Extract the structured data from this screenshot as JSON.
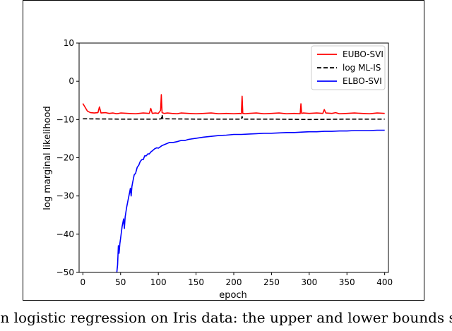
{
  "chart_data": {
    "type": "line",
    "title": "",
    "xlabel": "epoch",
    "ylabel": "log marginal likelihood",
    "xlim": [
      -5,
      405
    ],
    "ylim": [
      -50,
      10
    ],
    "xticks": [
      0,
      50,
      100,
      150,
      200,
      250,
      300,
      350,
      400
    ],
    "yticks": [
      10,
      0,
      -10,
      -20,
      -30,
      -40,
      -50
    ],
    "xtick_labels": [
      "0",
      "50",
      "100",
      "150",
      "200",
      "250",
      "300",
      "350",
      "400"
    ],
    "ytick_labels": [
      "10",
      "0",
      "−10",
      "−20",
      "−30",
      "−40",
      "−50"
    ],
    "grid": false,
    "legend_position": "top-right",
    "series": [
      {
        "name": "EUBO-SVI",
        "color": "#ff0000",
        "style": "solid",
        "x": [
          0,
          3,
          6,
          10,
          15,
          20,
          22,
          24,
          30,
          35,
          40,
          45,
          50,
          60,
          70,
          80,
          88,
          90,
          92,
          96,
          100,
          103,
          104,
          105,
          108,
          112,
          118,
          125,
          130,
          140,
          150,
          160,
          170,
          180,
          190,
          200,
          208,
          210,
          211,
          212,
          215,
          220,
          230,
          240,
          250,
          260,
          270,
          280,
          288,
          289,
          290,
          292,
          300,
          310,
          318,
          320,
          322,
          330,
          335,
          340,
          350,
          360,
          370,
          380,
          390,
          400
        ],
        "y": [
          -5.8,
          -6.8,
          -7.8,
          -8.2,
          -8.3,
          -8.2,
          -6.7,
          -8.3,
          -8.2,
          -8.4,
          -8.3,
          -8.5,
          -8.3,
          -8.4,
          -8.5,
          -8.3,
          -8.4,
          -7.1,
          -8.4,
          -8.3,
          -8.4,
          -7.6,
          -3.5,
          -8.2,
          -8.4,
          -8.3,
          -8.4,
          -8.5,
          -8.3,
          -8.4,
          -8.5,
          -8.4,
          -8.3,
          -8.5,
          -8.4,
          -8.5,
          -8.4,
          -8.5,
          -3.9,
          -8.4,
          -8.5,
          -8.4,
          -8.3,
          -8.5,
          -8.4,
          -8.3,
          -8.5,
          -8.4,
          -8.5,
          -5.9,
          -8.4,
          -8.3,
          -8.4,
          -8.3,
          -8.4,
          -7.4,
          -8.3,
          -8.4,
          -8.2,
          -8.5,
          -8.4,
          -8.3,
          -8.4,
          -8.5,
          -8.3,
          -8.4
        ]
      },
      {
        "name": "log ML-IS",
        "color": "#000000",
        "style": "dashed",
        "x": [
          0,
          50,
          100,
          104,
          105,
          106,
          150,
          200,
          210,
          211,
          212,
          250,
          300,
          350,
          400
        ],
        "y": [
          -9.8,
          -9.9,
          -9.9,
          -9.8,
          -8.8,
          -9.8,
          -9.9,
          -9.9,
          -9.9,
          -9.2,
          -9.9,
          -9.9,
          -10.0,
          -9.9,
          -9.9
        ],
        "note": ""
      },
      {
        "name": "ELBO-SVI",
        "color": "#0000ff",
        "style": "solid",
        "x": [
          45,
          46,
          47,
          48,
          49,
          50,
          52,
          54,
          55,
          56,
          58,
          60,
          62,
          63,
          64,
          65,
          66,
          68,
          70,
          72,
          74,
          76,
          78,
          80,
          82,
          84,
          86,
          88,
          90,
          92,
          95,
          98,
          100,
          105,
          110,
          115,
          120,
          125,
          130,
          135,
          140,
          150,
          160,
          170,
          180,
          190,
          200,
          210,
          220,
          230,
          240,
          250,
          260,
          270,
          280,
          290,
          300,
          310,
          320,
          330,
          340,
          350,
          360,
          370,
          380,
          390,
          400
        ],
        "y": [
          -50,
          -48,
          -43,
          -45,
          -42.5,
          -41,
          -38,
          -36,
          -38.5,
          -35.5,
          -33,
          -31,
          -29,
          -28,
          -30,
          -27.5,
          -26.5,
          -24.5,
          -24,
          -22.5,
          -22,
          -21,
          -20.5,
          -20.5,
          -19.5,
          -19.5,
          -19,
          -19,
          -18.5,
          -18.2,
          -17.7,
          -17.4,
          -17.5,
          -16.8,
          -16.4,
          -16.0,
          -16.0,
          -15.8,
          -15.5,
          -15.5,
          -15.2,
          -14.9,
          -14.6,
          -14.4,
          -14.2,
          -14.1,
          -13.9,
          -13.9,
          -13.8,
          -13.7,
          -13.6,
          -13.6,
          -13.5,
          -13.4,
          -13.4,
          -13.3,
          -13.2,
          -13.2,
          -13.1,
          -13.1,
          -13.0,
          -13.0,
          -12.9,
          -12.9,
          -12.9,
          -12.8,
          -12.8
        ]
      }
    ]
  },
  "caption": "esian logistic regression on Iris data: the upper and lower bounds s"
}
